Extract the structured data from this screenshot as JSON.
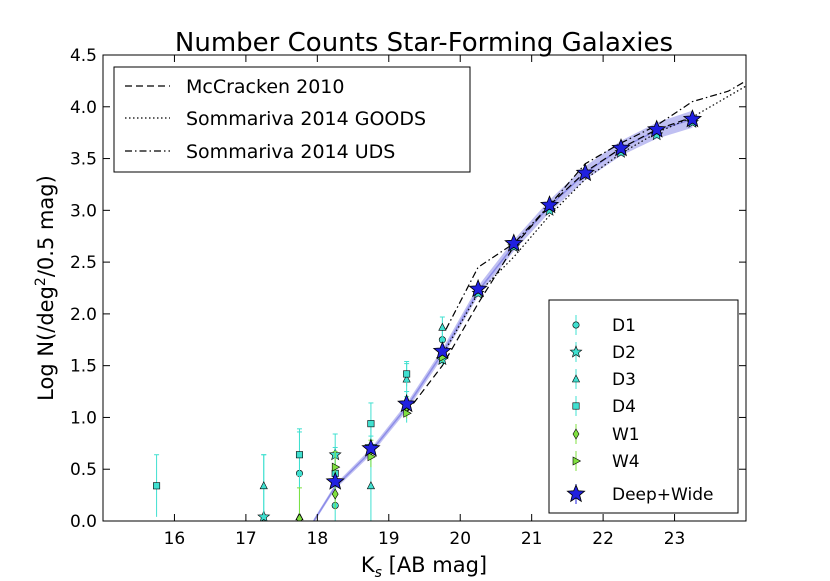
{
  "chart_data": {
    "type": "scatter",
    "title": "Number Counts Star-Forming Galaxies",
    "xlabel_main": "K",
    "xlabel_sub": "s",
    "xlabel_rest": " [AB mag]",
    "ylabel_pre": "Log N(/deg",
    "ylabel_sup": "2",
    "ylabel_post": "/0.5 mag)",
    "xlim": [
      15.0,
      24.0
    ],
    "ylim": [
      0.0,
      4.5
    ],
    "xticks": [
      "16",
      "17",
      "18",
      "19",
      "20",
      "21",
      "22",
      "23"
    ],
    "xtick_values": [
      16,
      17,
      18,
      19,
      20,
      21,
      22,
      23
    ],
    "yticks": [
      "0.0",
      "0.5",
      "1.0",
      "1.5",
      "2.0",
      "2.5",
      "3.0",
      "3.5",
      "4.0",
      "4.5"
    ],
    "ytick_values": [
      0.0,
      0.5,
      1.0,
      1.5,
      2.0,
      2.5,
      3.0,
      3.5,
      4.0,
      4.5
    ],
    "line_legend": [
      "McCracken 2010",
      "Sommariva 2014 GOODS",
      "Sommariva 2014 UDS"
    ],
    "marker_legend": [
      "D1",
      "D2",
      "D3",
      "D4",
      "W1",
      "W4",
      "Deep+Wide"
    ],
    "lines": [
      {
        "name": "McCracken 2010",
        "style": "dashed",
        "x": [
          19.25,
          19.75,
          20.25,
          20.75,
          21.25,
          21.75,
          22.25,
          22.75,
          23.25
        ],
        "y": [
          1.05,
          1.5,
          2.1,
          2.65,
          3.05,
          3.37,
          3.6,
          3.78,
          3.9
        ]
      },
      {
        "name": "Sommariva 2014 GOODS",
        "style": "dotted",
        "x": [
          19.75,
          20.25,
          20.75,
          21.25,
          21.75,
          22.25,
          22.75,
          23.25,
          23.75,
          24.0
        ],
        "y": [
          1.6,
          2.2,
          2.55,
          2.95,
          3.3,
          3.55,
          3.75,
          3.9,
          4.1,
          4.2
        ]
      },
      {
        "name": "Sommariva 2014 UDS",
        "style": "dashdot",
        "x": [
          19.8,
          20.25,
          20.75,
          21.25,
          21.75,
          22.25,
          22.75,
          23.25,
          23.75,
          24.0
        ],
        "y": [
          1.85,
          2.45,
          2.68,
          3.05,
          3.45,
          3.65,
          3.82,
          4.05,
          4.15,
          4.25
        ]
      }
    ],
    "band": {
      "name": "Deep+Wide fit",
      "color": "#8c8ce8",
      "x": [
        17.95,
        18.25,
        18.75,
        19.25,
        19.75,
        20.25,
        20.75,
        21.25,
        21.75,
        22.25,
        22.75,
        23.25
      ],
      "y": [
        0.0,
        0.33,
        0.67,
        1.1,
        1.62,
        2.22,
        2.66,
        3.04,
        3.36,
        3.6,
        3.77,
        3.88
      ]
    },
    "series": [
      {
        "name": "D1",
        "marker": "circle",
        "color": "#40e0d0",
        "x": [
          17.75,
          18.25,
          18.75,
          19.25,
          19.75
        ],
        "y": [
          0.46,
          0.15,
          0.72,
          1.1,
          1.75
        ],
        "err": [
          0.4,
          0.3,
          0.2,
          0.15,
          0.1
        ]
      },
      {
        "name": "D2",
        "marker": "star5",
        "color": "#40e0d0",
        "x": [
          17.25,
          18.25,
          18.75,
          19.25,
          19.75,
          20.25,
          20.75,
          21.25,
          21.75,
          22.25,
          22.75,
          23.25
        ],
        "y": [
          0.04,
          0.64,
          0.72,
          1.14,
          1.56,
          2.2,
          2.65,
          3.0,
          3.35,
          3.56,
          3.73,
          3.85
        ],
        "err": [
          0.6,
          0.2,
          0.1,
          0.06,
          0.05,
          0.03,
          0.02,
          0.02,
          0.02,
          0.02,
          0.02,
          0.02
        ]
      },
      {
        "name": "D3",
        "marker": "triangle",
        "color": "#40e0d0",
        "x": [
          17.25,
          17.75,
          18.75,
          19.25,
          19.75
        ],
        "y": [
          0.34,
          0.04,
          0.34,
          1.37,
          1.87
        ],
        "err": [
          0.3,
          0.4,
          0.4,
          0.15,
          0.1
        ]
      },
      {
        "name": "D4",
        "marker": "square",
        "color": "#40e0d0",
        "x": [
          15.75,
          17.75,
          18.25,
          18.75,
          19.25
        ],
        "y": [
          0.34,
          0.64,
          0.46,
          0.94,
          1.42
        ],
        "err": [
          0.3,
          0.25,
          0.25,
          0.2,
          0.12
        ]
      },
      {
        "name": "W1",
        "marker": "diamond",
        "color": "#80e040",
        "x": [
          17.75,
          18.25,
          18.75,
          19.25
        ],
        "y": [
          0.02,
          0.26,
          0.68,
          1.1
        ],
        "err": [
          0.3,
          0.15,
          0.1,
          0.05
        ]
      },
      {
        "name": "W4",
        "marker": "triangle-right",
        "color": "#80e040",
        "x": [
          18.25,
          18.75,
          19.25,
          19.75
        ],
        "y": [
          0.52,
          0.62,
          1.04,
          1.58
        ],
        "err": [
          0.15,
          0.1,
          0.05,
          0.04
        ]
      },
      {
        "name": "Deep+Wide",
        "marker": "star5-big",
        "color": "#2020e0",
        "x": [
          18.25,
          18.75,
          19.25,
          19.75,
          20.25,
          20.75,
          21.25,
          21.75,
          22.25,
          22.75,
          23.25
        ],
        "y": [
          0.38,
          0.7,
          1.13,
          1.64,
          2.24,
          2.68,
          3.05,
          3.36,
          3.6,
          3.78,
          3.88
        ],
        "err": [
          0.05,
          0.04,
          0.03,
          0.03,
          0.03,
          0.02,
          0.02,
          0.02,
          0.02,
          0.02,
          0.02
        ]
      }
    ]
  }
}
